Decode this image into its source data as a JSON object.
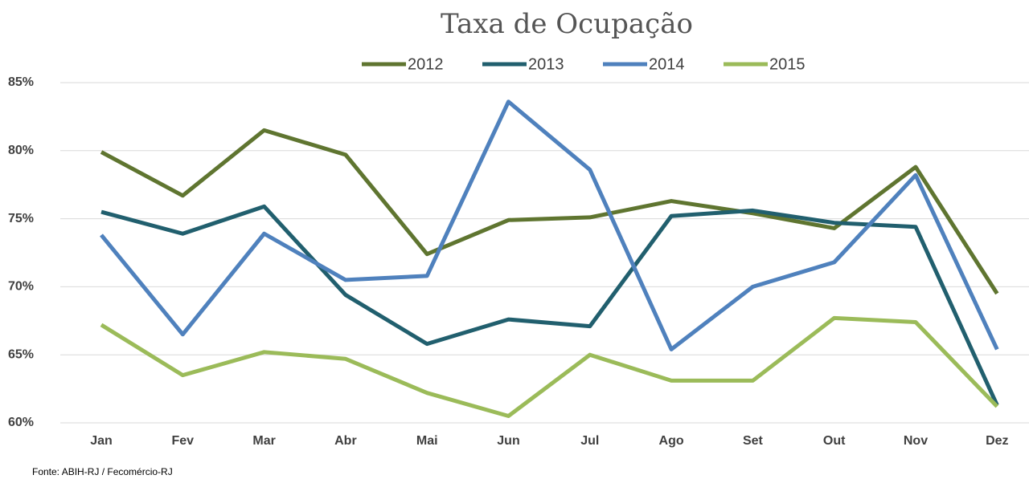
{
  "chart_data": {
    "type": "line",
    "title": "Taxa de Ocupação",
    "source": "Fonte: ABIH-RJ / Fecomércio-RJ",
    "categories": [
      "Jan",
      "Fev",
      "Mar",
      "Abr",
      "Mai",
      "Jun",
      "Jul",
      "Ago",
      "Set",
      "Out",
      "Nov",
      "Dez"
    ],
    "series": [
      {
        "name": "2012",
        "color": "#5f7530",
        "values": [
          79.9,
          76.7,
          81.5,
          79.7,
          72.4,
          74.9,
          75.1,
          76.3,
          75.4,
          74.3,
          78.8,
          69.5
        ]
      },
      {
        "name": "2013",
        "color": "#215f6e",
        "values": [
          75.5,
          73.9,
          75.9,
          69.4,
          65.8,
          67.6,
          67.1,
          75.2,
          75.6,
          74.7,
          74.4,
          61.3
        ]
      },
      {
        "name": "2014",
        "color": "#4f81bd",
        "values": [
          73.8,
          66.5,
          73.9,
          70.5,
          70.8,
          83.6,
          78.6,
          65.4,
          70.0,
          71.8,
          78.2,
          65.4
        ]
      },
      {
        "name": "2015",
        "color": "#9bbb59",
        "values": [
          67.2,
          63.5,
          65.2,
          64.7,
          62.2,
          60.5,
          65.0,
          63.1,
          63.1,
          67.7,
          67.4,
          61.2
        ]
      }
    ],
    "ylim": [
      60,
      85
    ],
    "yticks": [
      {
        "value": 60,
        "label": "60%"
      },
      {
        "value": 65,
        "label": "65%"
      },
      {
        "value": 70,
        "label": "70%"
      },
      {
        "value": 75,
        "label": "75%"
      },
      {
        "value": 80,
        "label": "80%"
      },
      {
        "value": 85,
        "label": "85%"
      }
    ],
    "grid": true,
    "legend": "top"
  }
}
